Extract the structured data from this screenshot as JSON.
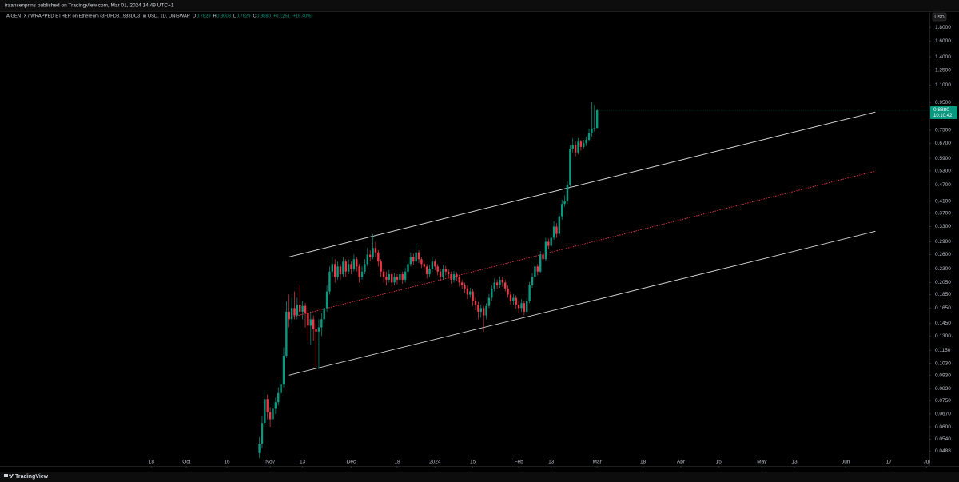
{
  "header": {
    "publisher": "iraansenprins published on TradingView.com, Mar 01, 2024 14:49 UTC+1"
  },
  "footer": {
    "brand": "TradingView"
  },
  "chart_data": {
    "type": "candlestick",
    "title": "AIGENTX / WRAPPED ETHER on Ethereum (3FDFD8...583DC3) in USD, 1D, UNISWAP",
    "legend_items": [
      {
        "key": "O",
        "value": "0.7629"
      },
      {
        "key": "H",
        "value": "0.9008"
      },
      {
        "key": "L",
        "value": "0.7629"
      },
      {
        "key": "C",
        "value": "0.8880"
      }
    ],
    "change": "+0.1251 (+16.40%)",
    "currency": "USD",
    "price_tag": "0.8880",
    "countdown": "10:10:42",
    "up_color": "#089981",
    "down_color": "#f23645",
    "log_scale": true,
    "x": [
      "2023-10-28",
      "2023-10-29",
      "2023-10-30",
      "2023-10-31",
      "2023-11-01",
      "2023-11-02",
      "2023-11-03",
      "2023-11-04",
      "2023-11-05",
      "2023-11-06",
      "2023-11-07",
      "2023-11-08",
      "2023-11-09",
      "2023-11-10",
      "2023-11-11",
      "2023-11-12",
      "2023-11-13",
      "2023-11-14",
      "2023-11-15",
      "2023-11-16",
      "2023-11-17",
      "2023-11-18",
      "2023-11-19",
      "2023-11-20",
      "2023-11-21",
      "2023-11-22",
      "2023-11-23",
      "2023-11-24",
      "2023-11-25",
      "2023-11-26",
      "2023-11-27",
      "2023-11-28",
      "2023-11-29",
      "2023-11-30",
      "2023-12-01",
      "2023-12-02",
      "2023-12-03",
      "2023-12-04",
      "2023-12-05",
      "2023-12-06",
      "2023-12-07",
      "2023-12-08",
      "2023-12-09",
      "2023-12-10",
      "2023-12-11",
      "2023-12-12",
      "2023-12-13",
      "2023-12-14",
      "2023-12-15",
      "2023-12-16",
      "2023-12-17",
      "2023-12-18",
      "2023-12-19",
      "2023-12-20",
      "2023-12-21",
      "2023-12-22",
      "2023-12-23",
      "2023-12-24",
      "2023-12-25",
      "2023-12-26",
      "2023-12-27",
      "2023-12-28",
      "2023-12-29",
      "2023-12-30",
      "2023-12-31",
      "2024-01-01",
      "2024-01-02",
      "2024-01-03",
      "2024-01-04",
      "2024-01-05",
      "2024-01-06",
      "2024-01-07",
      "2024-01-08",
      "2024-01-09",
      "2024-01-10",
      "2024-01-11",
      "2024-01-12",
      "2024-01-13",
      "2024-01-14",
      "2024-01-15",
      "2024-01-16",
      "2024-01-17",
      "2024-01-18",
      "2024-01-19",
      "2024-01-20",
      "2024-01-21",
      "2024-01-22",
      "2024-01-23",
      "2024-01-24",
      "2024-01-25",
      "2024-01-26",
      "2024-01-27",
      "2024-01-28",
      "2024-01-29",
      "2024-01-30",
      "2024-01-31",
      "2024-02-01",
      "2024-02-02",
      "2024-02-03",
      "2024-02-04",
      "2024-02-05",
      "2024-02-06",
      "2024-02-07",
      "2024-02-08",
      "2024-02-09",
      "2024-02-10",
      "2024-02-11",
      "2024-02-12",
      "2024-02-13",
      "2024-02-14",
      "2024-02-15",
      "2024-02-16",
      "2024-02-17",
      "2024-02-18",
      "2024-02-19",
      "2024-02-20",
      "2024-02-21",
      "2024-02-22",
      "2024-02-23",
      "2024-02-24",
      "2024-02-25",
      "2024-02-26",
      "2024-02-27",
      "2024-02-28",
      "2024-02-29",
      "2024-03-01"
    ],
    "open": [
      0.048,
      0.052,
      0.062,
      0.076,
      0.068,
      0.064,
      0.07,
      0.074,
      0.08,
      0.086,
      0.11,
      0.16,
      0.15,
      0.165,
      0.155,
      0.17,
      0.16,
      0.168,
      0.158,
      0.142,
      0.15,
      0.138,
      0.135,
      0.14,
      0.15,
      0.165,
      0.19,
      0.225,
      0.24,
      0.215,
      0.235,
      0.22,
      0.245,
      0.225,
      0.24,
      0.23,
      0.25,
      0.235,
      0.215,
      0.225,
      0.24,
      0.26,
      0.255,
      0.275,
      0.265,
      0.245,
      0.225,
      0.215,
      0.21,
      0.22,
      0.205,
      0.215,
      0.21,
      0.22,
      0.21,
      0.225,
      0.24,
      0.255,
      0.245,
      0.265,
      0.25,
      0.24,
      0.235,
      0.22,
      0.23,
      0.245,
      0.235,
      0.225,
      0.215,
      0.23,
      0.225,
      0.22,
      0.21,
      0.22,
      0.215,
      0.205,
      0.2,
      0.195,
      0.185,
      0.19,
      0.175,
      0.17,
      0.16,
      0.165,
      0.155,
      0.168,
      0.18,
      0.195,
      0.205,
      0.2,
      0.21,
      0.205,
      0.195,
      0.185,
      0.175,
      0.18,
      0.17,
      0.165,
      0.172,
      0.16,
      0.175,
      0.2,
      0.215,
      0.235,
      0.225,
      0.26,
      0.25,
      0.29,
      0.28,
      0.3,
      0.33,
      0.31,
      0.36,
      0.4,
      0.41,
      0.47,
      0.64,
      0.66,
      0.62,
      0.68,
      0.65,
      0.67,
      0.69,
      0.73,
      0.76,
      0.7629
    ],
    "high": [
      0.055,
      0.066,
      0.082,
      0.079,
      0.071,
      0.073,
      0.077,
      0.084,
      0.09,
      0.118,
      0.175,
      0.185,
      0.18,
      0.19,
      0.18,
      0.2,
      0.175,
      0.172,
      0.162,
      0.16,
      0.155,
      0.145,
      0.15,
      0.158,
      0.17,
      0.2,
      0.235,
      0.255,
      0.25,
      0.245,
      0.24,
      0.255,
      0.25,
      0.25,
      0.245,
      0.26,
      0.255,
      0.24,
      0.235,
      0.25,
      0.275,
      0.27,
      0.31,
      0.29,
      0.27,
      0.25,
      0.23,
      0.225,
      0.228,
      0.225,
      0.222,
      0.22,
      0.228,
      0.225,
      0.232,
      0.248,
      0.265,
      0.262,
      0.285,
      0.27,
      0.255,
      0.248,
      0.24,
      0.238,
      0.255,
      0.25,
      0.24,
      0.23,
      0.238,
      0.236,
      0.23,
      0.225,
      0.226,
      0.224,
      0.218,
      0.21,
      0.205,
      0.2,
      0.196,
      0.194,
      0.18,
      0.174,
      0.17,
      0.168,
      0.172,
      0.186,
      0.2,
      0.212,
      0.21,
      0.216,
      0.215,
      0.21,
      0.2,
      0.19,
      0.186,
      0.184,
      0.175,
      0.178,
      0.176,
      0.18,
      0.206,
      0.222,
      0.242,
      0.24,
      0.268,
      0.266,
      0.3,
      0.298,
      0.31,
      0.345,
      0.34,
      0.372,
      0.415,
      0.43,
      0.485,
      0.66,
      0.7,
      0.68,
      0.7,
      0.69,
      0.69,
      0.71,
      0.76,
      0.95,
      0.93,
      0.9008
    ],
    "low": [
      0.046,
      0.05,
      0.06,
      0.064,
      0.06,
      0.061,
      0.067,
      0.072,
      0.077,
      0.084,
      0.108,
      0.14,
      0.145,
      0.15,
      0.15,
      0.155,
      0.15,
      0.14,
      0.125,
      0.12,
      0.125,
      0.1,
      0.098,
      0.13,
      0.145,
      0.16,
      0.185,
      0.215,
      0.205,
      0.21,
      0.21,
      0.215,
      0.215,
      0.22,
      0.22,
      0.225,
      0.225,
      0.205,
      0.21,
      0.22,
      0.235,
      0.245,
      0.25,
      0.255,
      0.235,
      0.215,
      0.205,
      0.2,
      0.205,
      0.198,
      0.2,
      0.202,
      0.205,
      0.203,
      0.205,
      0.22,
      0.235,
      0.238,
      0.24,
      0.242,
      0.232,
      0.228,
      0.212,
      0.215,
      0.225,
      0.228,
      0.218,
      0.208,
      0.21,
      0.218,
      0.212,
      0.203,
      0.205,
      0.208,
      0.198,
      0.194,
      0.188,
      0.178,
      0.18,
      0.168,
      0.162,
      0.15,
      0.152,
      0.135,
      0.15,
      0.165,
      0.176,
      0.19,
      0.194,
      0.196,
      0.198,
      0.19,
      0.18,
      0.17,
      0.17,
      0.164,
      0.158,
      0.16,
      0.155,
      0.156,
      0.172,
      0.196,
      0.21,
      0.218,
      0.222,
      0.244,
      0.246,
      0.272,
      0.276,
      0.295,
      0.3,
      0.305,
      0.35,
      0.39,
      0.4,
      0.46,
      0.62,
      0.6,
      0.61,
      0.63,
      0.64,
      0.655,
      0.68,
      0.71,
      0.74,
      0.7629
    ],
    "close": [
      0.052,
      0.062,
      0.076,
      0.068,
      0.064,
      0.07,
      0.074,
      0.08,
      0.086,
      0.11,
      0.16,
      0.15,
      0.165,
      0.155,
      0.17,
      0.16,
      0.168,
      0.158,
      0.142,
      0.15,
      0.138,
      0.135,
      0.14,
      0.15,
      0.165,
      0.19,
      0.225,
      0.24,
      0.215,
      0.235,
      0.22,
      0.245,
      0.225,
      0.24,
      0.23,
      0.25,
      0.235,
      0.215,
      0.225,
      0.24,
      0.26,
      0.255,
      0.275,
      0.265,
      0.245,
      0.225,
      0.215,
      0.21,
      0.22,
      0.205,
      0.215,
      0.21,
      0.22,
      0.21,
      0.225,
      0.24,
      0.255,
      0.245,
      0.265,
      0.25,
      0.24,
      0.235,
      0.22,
      0.23,
      0.245,
      0.235,
      0.225,
      0.215,
      0.23,
      0.225,
      0.22,
      0.21,
      0.22,
      0.215,
      0.205,
      0.2,
      0.195,
      0.185,
      0.19,
      0.175,
      0.17,
      0.16,
      0.165,
      0.155,
      0.168,
      0.18,
      0.195,
      0.205,
      0.2,
      0.21,
      0.205,
      0.195,
      0.185,
      0.175,
      0.18,
      0.17,
      0.165,
      0.172,
      0.16,
      0.175,
      0.2,
      0.215,
      0.235,
      0.225,
      0.26,
      0.25,
      0.29,
      0.28,
      0.3,
      0.33,
      0.31,
      0.36,
      0.4,
      0.41,
      0.47,
      0.64,
      0.66,
      0.62,
      0.68,
      0.65,
      0.67,
      0.69,
      0.73,
      0.76,
      0.7629,
      0.888
    ],
    "trendlines": [
      {
        "color": "#d6d6d6",
        "dashed": false,
        "x": [
          "2023-11-08",
          "2024-06-12"
        ],
        "y": [
          0.255,
          0.875
        ]
      },
      {
        "color": "#f23645",
        "dashed": true,
        "x": [
          "2023-11-08",
          "2024-06-12"
        ],
        "y": [
          0.152,
          0.529
        ]
      },
      {
        "color": "#d6d6d6",
        "dashed": false,
        "x": [
          "2023-11-08",
          "2024-06-12"
        ],
        "y": [
          0.0932,
          0.317
        ]
      }
    ],
    "xlim": [
      "2023-07-24",
      "2024-07-02"
    ],
    "xticks": [
      {
        "value": "2023-09-18",
        "label": "18"
      },
      {
        "value": "2023-10-01",
        "label": "Oct"
      },
      {
        "value": "2023-10-16",
        "label": "16"
      },
      {
        "value": "2023-11-01",
        "label": "Nov"
      },
      {
        "value": "2023-11-13",
        "label": "13"
      },
      {
        "value": "2023-12-01",
        "label": "Dec"
      },
      {
        "value": "2023-12-18",
        "label": "18"
      },
      {
        "value": "2024-01-01",
        "label": "2024"
      },
      {
        "value": "2024-01-15",
        "label": "15"
      },
      {
        "value": "2024-02-01",
        "label": "Feb"
      },
      {
        "value": "2024-02-13",
        "label": "13"
      },
      {
        "value": "2024-03-01",
        "label": "Mar"
      },
      {
        "value": "2024-03-18",
        "label": "18"
      },
      {
        "value": "2024-04-01",
        "label": "Apr"
      },
      {
        "value": "2024-04-15",
        "label": "15"
      },
      {
        "value": "2024-05-01",
        "label": "May"
      },
      {
        "value": "2024-05-13",
        "label": "13"
      },
      {
        "value": "2024-06-01",
        "label": "Jun"
      },
      {
        "value": "2024-06-17",
        "label": "17"
      },
      {
        "value": "2024-07-01",
        "label": "Jul"
      }
    ],
    "ylim": [
      0.043,
      2.05
    ],
    "yticks": [
      {
        "value": 1.8,
        "label": "1.8000"
      },
      {
        "value": 1.6,
        "label": "1.6000"
      },
      {
        "value": 1.4,
        "label": "1.4000"
      },
      {
        "value": 1.25,
        "label": "1.2500"
      },
      {
        "value": 1.1,
        "label": "1.1000"
      },
      {
        "value": 0.95,
        "label": "0.9500"
      },
      {
        "value": 0.75,
        "label": "0.7500"
      },
      {
        "value": 0.67,
        "label": "0.6700"
      },
      {
        "value": 0.59,
        "label": "0.5900"
      },
      {
        "value": 0.53,
        "label": "0.5300"
      },
      {
        "value": 0.47,
        "label": "0.4700"
      },
      {
        "value": 0.41,
        "label": "0.4100"
      },
      {
        "value": 0.37,
        "label": "0.3700"
      },
      {
        "value": 0.33,
        "label": "0.3300"
      },
      {
        "value": 0.29,
        "label": "0.2900"
      },
      {
        "value": 0.26,
        "label": "0.2600"
      },
      {
        "value": 0.23,
        "label": "0.2300"
      },
      {
        "value": 0.205,
        "label": "0.2050"
      },
      {
        "value": 0.185,
        "label": "0.1850"
      },
      {
        "value": 0.165,
        "label": "0.1650"
      },
      {
        "value": 0.145,
        "label": "0.1450"
      },
      {
        "value": 0.13,
        "label": "0.1300"
      },
      {
        "value": 0.115,
        "label": "0.1150"
      },
      {
        "value": 0.103,
        "label": "0.1030"
      },
      {
        "value": 0.093,
        "label": "0.0930"
      },
      {
        "value": 0.083,
        "label": "0.0830"
      },
      {
        "value": 0.075,
        "label": "0.0750"
      },
      {
        "value": 0.067,
        "label": "0.0670"
      },
      {
        "value": 0.06,
        "label": "0.0600"
      },
      {
        "value": 0.054,
        "label": "0.0540"
      },
      {
        "value": 0.0488,
        "label": "0.0488"
      }
    ]
  }
}
